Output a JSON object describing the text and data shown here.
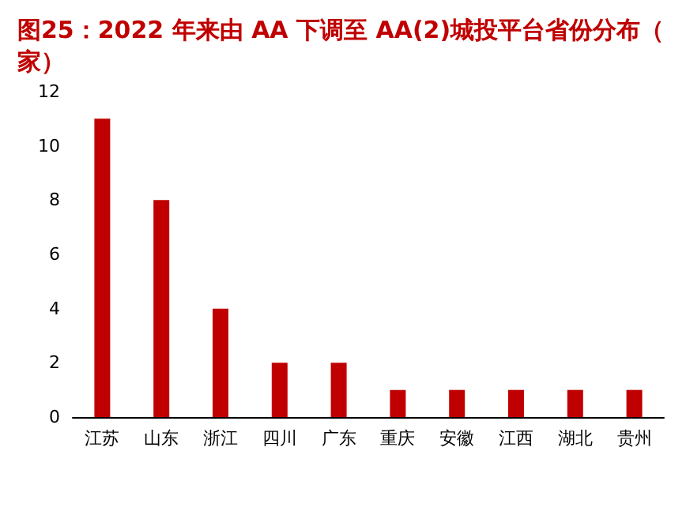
{
  "chart_data": {
    "type": "bar",
    "title": "图25：2022 年来由 AA 下调至 AA(2)城投平台省份分布（家）",
    "categories": [
      "江苏",
      "山东",
      "浙江",
      "四川",
      "广东",
      "重庆",
      "安徽",
      "江西",
      "湖北",
      "贵州"
    ],
    "values": [
      11,
      8,
      4,
      2,
      2,
      1,
      1,
      1,
      1,
      1
    ],
    "color": "#c00000",
    "ylim": [
      0,
      12
    ],
    "yticks": [
      0,
      2,
      4,
      6,
      8,
      10,
      12
    ],
    "grid": false
  }
}
